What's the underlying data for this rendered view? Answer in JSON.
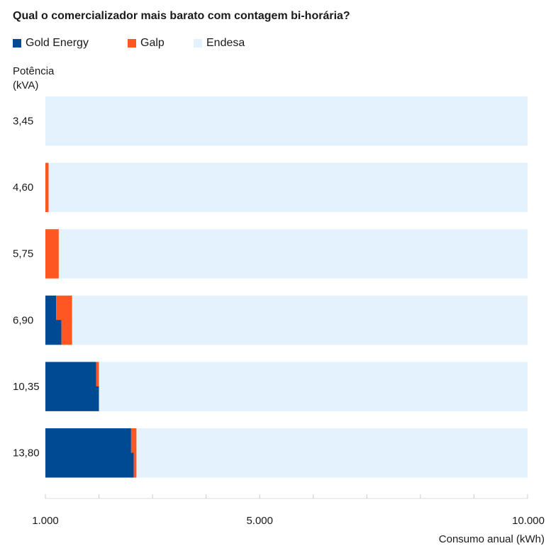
{
  "chart_data": {
    "type": "bar",
    "title": "Qual o comercializador mais barato com contagem bi-horária?",
    "ylabel_lines": [
      "Potência",
      "(kVA)"
    ],
    "xlabel": "Consumo anual (kWh)",
    "xlim": [
      1000,
      10000
    ],
    "x_tick_labels": [
      "1.000",
      "5.000",
      "10.000"
    ],
    "x_tick_label_values": [
      1000,
      5000,
      10000
    ],
    "x_minor_ticks": [
      1000,
      2000,
      3000,
      4000,
      5000,
      6000,
      7000,
      8000,
      9000,
      10000
    ],
    "legend_position": "top-left",
    "series": [
      {
        "name": "Gold Energy",
        "color": "#004a93"
      },
      {
        "name": "Galp",
        "color": "#ff5722"
      },
      {
        "name": "Endesa",
        "color": "#e3f2fd"
      }
    ],
    "categories": [
      "3,45",
      "4,60",
      "5,75",
      "6,90",
      "10,35",
      "13,80"
    ],
    "bars": [
      {
        "top": [
          {
            "series": "Endesa",
            "from": 1000,
            "to": 10000
          }
        ],
        "bottom": [
          {
            "series": "Endesa",
            "from": 1000,
            "to": 10000
          }
        ]
      },
      {
        "top": [
          {
            "series": "Galp",
            "from": 1000,
            "to": 1060
          },
          {
            "series": "Endesa",
            "from": 1060,
            "to": 10000
          }
        ],
        "bottom": [
          {
            "series": "Galp",
            "from": 1000,
            "to": 1060
          },
          {
            "series": "Endesa",
            "from": 1060,
            "to": 10000
          }
        ]
      },
      {
        "top": [
          {
            "series": "Galp",
            "from": 1000,
            "to": 1250
          },
          {
            "series": "Endesa",
            "from": 1250,
            "to": 10000
          }
        ],
        "bottom": [
          {
            "series": "Galp",
            "from": 1000,
            "to": 1250
          },
          {
            "series": "Endesa",
            "from": 1250,
            "to": 10000
          }
        ]
      },
      {
        "top": [
          {
            "series": "Gold Energy",
            "from": 1000,
            "to": 1200
          },
          {
            "series": "Galp",
            "from": 1200,
            "to": 1500
          },
          {
            "series": "Endesa",
            "from": 1500,
            "to": 10000
          }
        ],
        "bottom": [
          {
            "series": "Gold Energy",
            "from": 1000,
            "to": 1300
          },
          {
            "series": "Galp",
            "from": 1300,
            "to": 1500
          },
          {
            "series": "Endesa",
            "from": 1500,
            "to": 10000
          }
        ]
      },
      {
        "top": [
          {
            "series": "Gold Energy",
            "from": 1000,
            "to": 1950
          },
          {
            "series": "Galp",
            "from": 1950,
            "to": 2000
          },
          {
            "series": "Endesa",
            "from": 2000,
            "to": 10000
          }
        ],
        "bottom": [
          {
            "series": "Gold Energy",
            "from": 1000,
            "to": 2000
          },
          {
            "series": "Endesa",
            "from": 2000,
            "to": 10000
          }
        ]
      },
      {
        "top": [
          {
            "series": "Gold Energy",
            "from": 1000,
            "to": 2600
          },
          {
            "series": "Galp",
            "from": 2600,
            "to": 2700
          },
          {
            "series": "Endesa",
            "from": 2700,
            "to": 10000
          }
        ],
        "bottom": [
          {
            "series": "Gold Energy",
            "from": 1000,
            "to": 2650
          },
          {
            "series": "Galp",
            "from": 2650,
            "to": 2700
          },
          {
            "series": "Endesa",
            "from": 2700,
            "to": 10000
          }
        ]
      }
    ]
  }
}
